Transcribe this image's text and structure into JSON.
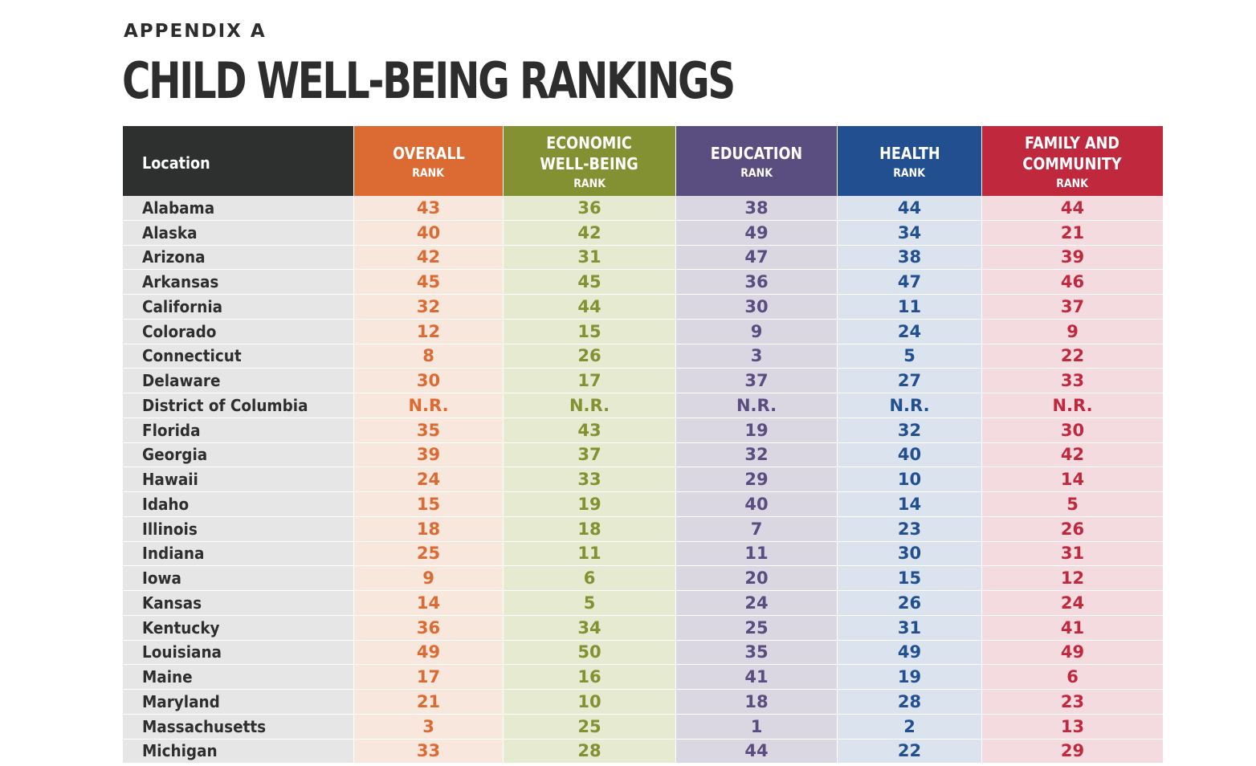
{
  "appendix_label": "APPENDIX A",
  "title": "CHILD WELL-BEING RANKINGS",
  "colors": {
    "overall": "#dc6a33",
    "economic": "#849133",
    "education": "#5a4d80",
    "health": "#214f8f",
    "family": "#c0283e",
    "location_header": "#2e3030"
  },
  "headers": {
    "location": "Location",
    "overall": {
      "title": "OVERALL",
      "sub": "RANK"
    },
    "economic": {
      "title": "ECONOMIC\nWELL-BEING",
      "sub": "RANK"
    },
    "education": {
      "title": "EDUCATION",
      "sub": "RANK"
    },
    "health": {
      "title": "HEALTH",
      "sub": "RANK"
    },
    "family": {
      "title": "FAMILY AND\nCOMMUNITY",
      "sub": "RANK"
    }
  },
  "rows": [
    {
      "location": "Alabama",
      "overall": "43",
      "economic": "36",
      "education": "38",
      "health": "44",
      "family": "44"
    },
    {
      "location": "Alaska",
      "overall": "40",
      "economic": "42",
      "education": "49",
      "health": "34",
      "family": "21"
    },
    {
      "location": "Arizona",
      "overall": "42",
      "economic": "31",
      "education": "47",
      "health": "38",
      "family": "39"
    },
    {
      "location": "Arkansas",
      "overall": "45",
      "economic": "45",
      "education": "36",
      "health": "47",
      "family": "46"
    },
    {
      "location": "California",
      "overall": "32",
      "economic": "44",
      "education": "30",
      "health": "11",
      "family": "37"
    },
    {
      "location": "Colorado",
      "overall": "12",
      "economic": "15",
      "education": "9",
      "health": "24",
      "family": "9"
    },
    {
      "location": "Connecticut",
      "overall": "8",
      "economic": "26",
      "education": "3",
      "health": "5",
      "family": "22"
    },
    {
      "location": "Delaware",
      "overall": "30",
      "economic": "17",
      "education": "37",
      "health": "27",
      "family": "33"
    },
    {
      "location": "District of Columbia",
      "overall": "N.R.",
      "economic": "N.R.",
      "education": "N.R.",
      "health": "N.R.",
      "family": "N.R."
    },
    {
      "location": "Florida",
      "overall": "35",
      "economic": "43",
      "education": "19",
      "health": "32",
      "family": "30"
    },
    {
      "location": "Georgia",
      "overall": "39",
      "economic": "37",
      "education": "32",
      "health": "40",
      "family": "42"
    },
    {
      "location": "Hawaii",
      "overall": "24",
      "economic": "33",
      "education": "29",
      "health": "10",
      "family": "14"
    },
    {
      "location": "Idaho",
      "overall": "15",
      "economic": "19",
      "education": "40",
      "health": "14",
      "family": "5"
    },
    {
      "location": "Illinois",
      "overall": "18",
      "economic": "18",
      "education": "7",
      "health": "23",
      "family": "26"
    },
    {
      "location": "Indiana",
      "overall": "25",
      "economic": "11",
      "education": "11",
      "health": "30",
      "family": "31"
    },
    {
      "location": "Iowa",
      "overall": "9",
      "economic": "6",
      "education": "20",
      "health": "15",
      "family": "12"
    },
    {
      "location": "Kansas",
      "overall": "14",
      "economic": "5",
      "education": "24",
      "health": "26",
      "family": "24"
    },
    {
      "location": "Kentucky",
      "overall": "36",
      "economic": "34",
      "education": "25",
      "health": "31",
      "family": "41"
    },
    {
      "location": "Louisiana",
      "overall": "49",
      "economic": "50",
      "education": "35",
      "health": "49",
      "family": "49"
    },
    {
      "location": "Maine",
      "overall": "17",
      "economic": "16",
      "education": "41",
      "health": "19",
      "family": "6"
    },
    {
      "location": "Maryland",
      "overall": "21",
      "economic": "10",
      "education": "18",
      "health": "28",
      "family": "23"
    },
    {
      "location": "Massachusetts",
      "overall": "3",
      "economic": "25",
      "education": "1",
      "health": "2",
      "family": "13"
    },
    {
      "location": "Michigan",
      "overall": "33",
      "economic": "28",
      "education": "44",
      "health": "22",
      "family": "29"
    }
  ]
}
